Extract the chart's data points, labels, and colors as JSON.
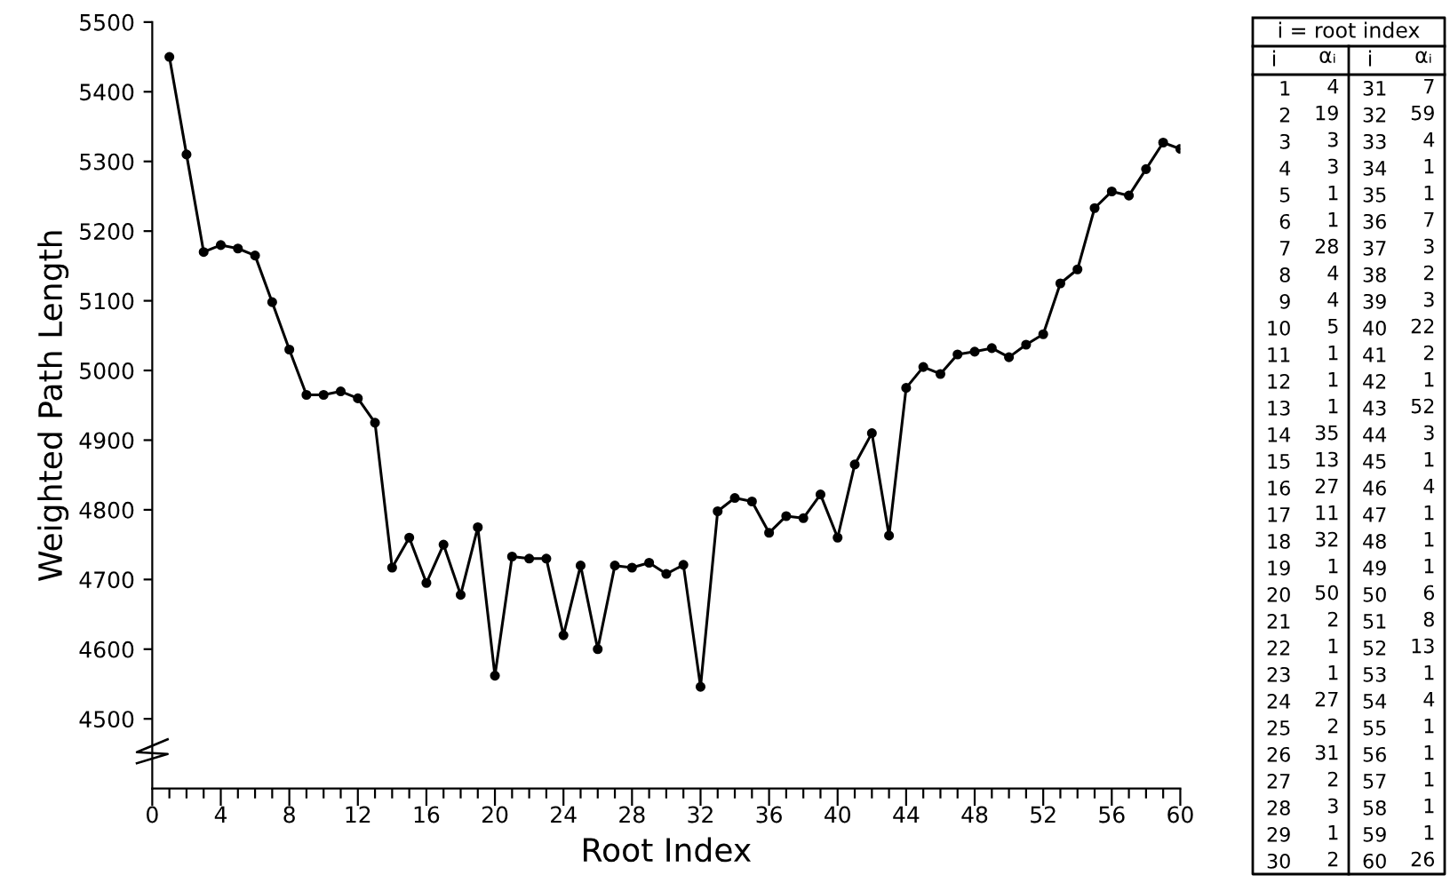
{
  "chart_data": [
    {
      "type": "line",
      "xlabel": "Root Index",
      "ylabel": "Weighted Path Length",
      "x": [
        1,
        2,
        3,
        4,
        5,
        6,
        7,
        8,
        9,
        10,
        11,
        12,
        13,
        14,
        15,
        16,
        17,
        18,
        19,
        20,
        21,
        22,
        23,
        24,
        25,
        26,
        27,
        28,
        29,
        30,
        31,
        32,
        33,
        34,
        35,
        36,
        37,
        38,
        39,
        40,
        41,
        42,
        43,
        44,
        45,
        46,
        47,
        48,
        49,
        50,
        51,
        52,
        53,
        54,
        55,
        56,
        57,
        58,
        59,
        60
      ],
      "series": [
        {
          "color": "#000000",
          "values": [
            5450,
            5310,
            5170,
            5180,
            5175,
            5165,
            5098,
            5030,
            4965,
            4965,
            4970,
            4960,
            4925,
            4717,
            4760,
            4695,
            4750,
            4678,
            4775,
            4562,
            4733,
            4730,
            4730,
            4620,
            4720,
            4600,
            4720,
            4717,
            4724,
            4708,
            4721,
            4546,
            4798,
            4817,
            4812,
            4767,
            4791,
            4788,
            4822,
            4760,
            4865,
            4910,
            4763,
            4975,
            5005,
            4995,
            5023,
            5027,
            5032,
            5019,
            5037,
            5052,
            5125,
            5145,
            5233,
            5257,
            5251,
            5289,
            5327,
            5318
          ]
        }
      ],
      "xlim": [
        0,
        60
      ],
      "xticks": [
        0,
        {
          "value": 1,
          "label": null
        },
        {
          "value": 2,
          "label": null
        },
        {
          "value": 3,
          "label": null
        },
        4,
        {
          "value": 5,
          "label": null
        },
        {
          "value": 6,
          "label": null
        },
        {
          "value": 7,
          "label": null
        },
        8,
        {
          "value": 9,
          "label": null
        },
        {
          "value": 10,
          "label": null
        },
        {
          "value": 11,
          "label": null
        },
        12,
        {
          "value": 13,
          "label": null
        },
        {
          "value": 14,
          "label": null
        },
        {
          "value": 15,
          "label": null
        },
        16,
        {
          "value": 17,
          "label": null
        },
        {
          "value": 18,
          "label": null
        },
        {
          "value": 19,
          "label": null
        },
        20,
        {
          "value": 21,
          "label": null
        },
        {
          "value": 22,
          "label": null
        },
        {
          "value": 23,
          "label": null
        },
        24,
        {
          "value": 25,
          "label": null
        },
        {
          "value": 26,
          "label": null
        },
        {
          "value": 27,
          "label": null
        },
        28,
        {
          "value": 29,
          "label": null
        },
        {
          "value": 30,
          "label": null
        },
        {
          "value": 31,
          "label": null
        },
        32,
        {
          "value": 33,
          "label": null
        },
        {
          "value": 34,
          "label": null
        },
        {
          "value": 35,
          "label": null
        },
        36,
        {
          "value": 37,
          "label": null
        },
        {
          "value": 38,
          "label": null
        },
        {
          "value": 39,
          "label": null
        },
        40,
        {
          "value": 41,
          "label": null
        },
        {
          "value": 42,
          "label": null
        },
        {
          "value": 43,
          "label": null
        },
        44,
        {
          "value": 45,
          "label": null
        },
        {
          "value": 46,
          "label": null
        },
        {
          "value": 47,
          "label": null
        },
        48,
        {
          "value": 49,
          "label": null
        },
        {
          "value": 50,
          "label": null
        },
        {
          "value": 51,
          "label": null
        },
        52,
        {
          "value": 53,
          "label": null
        },
        {
          "value": 54,
          "label": null
        },
        {
          "value": 55,
          "label": null
        },
        56,
        {
          "value": 57,
          "label": null
        },
        {
          "value": 58,
          "label": null
        },
        {
          "value": 59,
          "label": null
        },
        60
      ],
      "ylim": [
        4400,
        5500
      ],
      "yticks": [
        4500,
        4600,
        4700,
        4800,
        4900,
        5000,
        5100,
        5200,
        5300,
        5400,
        5500
      ],
      "grid": false,
      "legend": false,
      "marker": "circle",
      "line_style": "solid"
    },
    {
      "type": "heatmap",
      "title": "i = root index",
      "ylabel": "i",
      "data_labels": true,
      "categories": [
        "αᵢ"
      ],
      "y_categories": [
        "1",
        "2",
        "3",
        "4",
        "5",
        "6",
        "7",
        "8",
        "9",
        "10",
        "11",
        "12",
        "13",
        "14",
        "15",
        "16",
        "17",
        "18",
        "19",
        "20",
        "21",
        "22",
        "23",
        "24",
        "25",
        "26",
        "27",
        "28",
        "29",
        "30"
      ],
      "cells": [
        [
          4
        ],
        [
          19
        ],
        [
          3
        ],
        [
          3
        ],
        [
          1
        ],
        [
          1
        ],
        [
          28
        ],
        [
          4
        ],
        [
          4
        ],
        [
          5
        ],
        [
          1
        ],
        [
          1
        ],
        [
          1
        ],
        [
          35
        ],
        [
          13
        ],
        [
          27
        ],
        [
          11
        ],
        [
          32
        ],
        [
          1
        ],
        [
          50
        ],
        [
          2
        ],
        [
          1
        ],
        [
          1
        ],
        [
          27
        ],
        [
          2
        ],
        [
          31
        ],
        [
          2
        ],
        [
          3
        ],
        [
          1
        ],
        [
          2
        ]
      ]
    },
    {
      "type": "heatmap",
      "ylabel": "i",
      "data_labels": true,
      "categories": [
        "αᵢ"
      ],
      "y_categories": [
        "31",
        "32",
        "33",
        "34",
        "35",
        "36",
        "37",
        "38",
        "39",
        "40",
        "41",
        "42",
        "43",
        "44",
        "45",
        "46",
        "47",
        "48",
        "49",
        "50",
        "51",
        "52",
        "53",
        "54",
        "55",
        "56",
        "57",
        "58",
        "59",
        "60"
      ],
      "cells": [
        [
          7
        ],
        [
          59
        ],
        [
          4
        ],
        [
          1
        ],
        [
          1
        ],
        [
          7
        ],
        [
          3
        ],
        [
          2
        ],
        [
          3
        ],
        [
          22
        ],
        [
          2
        ],
        [
          1
        ],
        [
          52
        ],
        [
          3
        ],
        [
          1
        ],
        [
          4
        ],
        [
          1
        ],
        [
          1
        ],
        [
          1
        ],
        [
          6
        ],
        [
          8
        ],
        [
          13
        ],
        [
          1
        ],
        [
          4
        ],
        [
          1
        ],
        [
          1
        ],
        [
          1
        ],
        [
          1
        ],
        [
          1
        ],
        [
          26
        ]
      ]
    }
  ]
}
